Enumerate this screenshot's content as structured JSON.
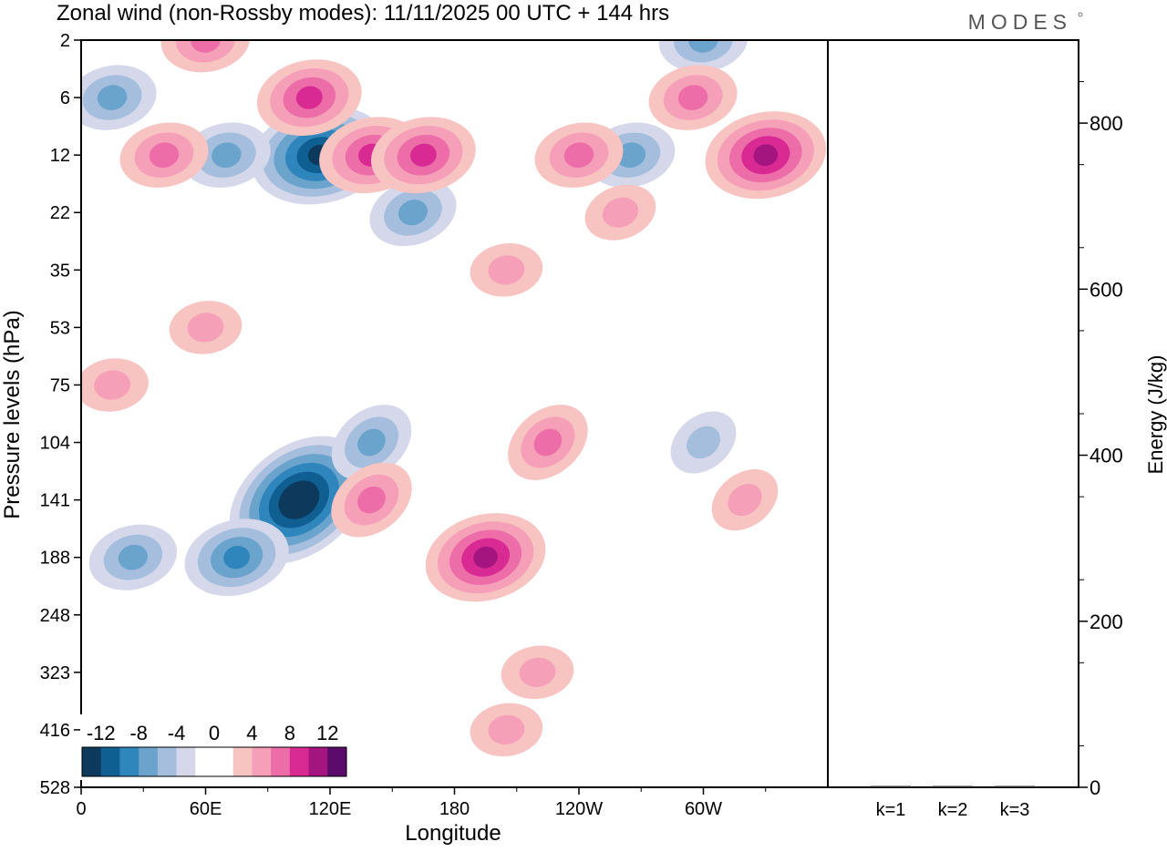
{
  "logo": "MODES",
  "chart_data": [
    {
      "type": "heatmap",
      "title": "Zonal wind (non-Rossby modes):  11/11/2025  00 UTC  + 144 hrs",
      "xlabel": "Longitude",
      "ylabel": "Pressure levels (hPa)",
      "x_ticks": [
        "0",
        "60E",
        "120E",
        "180",
        "120W",
        "60W"
      ],
      "x_tick_degrees": [
        0,
        60,
        120,
        180,
        240,
        300
      ],
      "xlim": [
        0,
        360
      ],
      "y_ticks": [
        "2",
        "6",
        "12",
        "22",
        "35",
        "53",
        "75",
        "104",
        "141",
        "188",
        "248",
        "323",
        "416",
        "528"
      ],
      "colorbar": {
        "labels": [
          "-12",
          "-8",
          "-4",
          "0",
          "4",
          "8",
          "12"
        ],
        "label_positions": [
          -12,
          -8,
          -4,
          0,
          4,
          8,
          12
        ],
        "levels": [
          -14,
          -12,
          -10,
          -8,
          -6,
          -4,
          -2,
          2,
          4,
          6,
          8,
          10,
          12,
          14
        ],
        "colors": [
          "#0d3a5c",
          "#0f5f93",
          "#2f86bd",
          "#6aa3cb",
          "#a5bedd",
          "#d5d8ea",
          "#ffffff",
          "#f8c4c2",
          "#f59fb8",
          "#ec6da8",
          "#d92a93",
          "#a4157f",
          "#5c0b6c"
        ]
      },
      "features": [
        {
          "lon": 105,
          "level": "141",
          "value": -13
        },
        {
          "lon": 75,
          "level": "188",
          "value": -8
        },
        {
          "lon": 25,
          "level": "188",
          "value": -6
        },
        {
          "lon": 140,
          "level": "104",
          "value": -6
        },
        {
          "lon": 115,
          "level": "12",
          "value": -11
        },
        {
          "lon": 70,
          "level": "12",
          "value": -6
        },
        {
          "lon": 160,
          "level": "22",
          "value": -6
        },
        {
          "lon": 265,
          "level": "12",
          "value": -6
        },
        {
          "lon": 15,
          "level": "6",
          "value": -5
        },
        {
          "lon": 300,
          "level": "2",
          "value": -5
        },
        {
          "lon": 195,
          "level": "188",
          "value": 10
        },
        {
          "lon": 140,
          "level": "141",
          "value": 6
        },
        {
          "lon": 110,
          "level": "6",
          "value": 7
        },
        {
          "lon": 140,
          "level": "12",
          "value": 7
        },
        {
          "lon": 165,
          "level": "12",
          "value": 8
        },
        {
          "lon": 330,
          "level": "12",
          "value": 9
        },
        {
          "lon": 40,
          "level": "12",
          "value": 5
        },
        {
          "lon": 240,
          "level": "12",
          "value": 5
        },
        {
          "lon": 295,
          "level": "6",
          "value": 6
        },
        {
          "lon": 60,
          "level": "2",
          "value": 5
        },
        {
          "lon": 225,
          "level": "104",
          "value": 5
        },
        {
          "lon": 220,
          "level": "323",
          "value": 3
        },
        {
          "lon": 205,
          "level": "416",
          "value": 3
        },
        {
          "lon": 260,
          "level": "22",
          "value": 3
        },
        {
          "lon": 60,
          "level": "53",
          "value": 3
        },
        {
          "lon": 15,
          "level": "75",
          "value": 3
        },
        {
          "lon": 320,
          "level": "141",
          "value": 3
        },
        {
          "lon": 300,
          "level": "104",
          "value": -3
        },
        {
          "lon": 205,
          "level": "35",
          "value": 3
        }
      ]
    },
    {
      "type": "bar",
      "ylabel": "Energy (J/kg)",
      "categories": [
        "k=1",
        "k=2",
        "k=3"
      ],
      "values": [
        1,
        1,
        1
      ],
      "ylim": [
        0,
        900
      ],
      "y_ticks": [
        0,
        200,
        400,
        600,
        800
      ]
    }
  ]
}
